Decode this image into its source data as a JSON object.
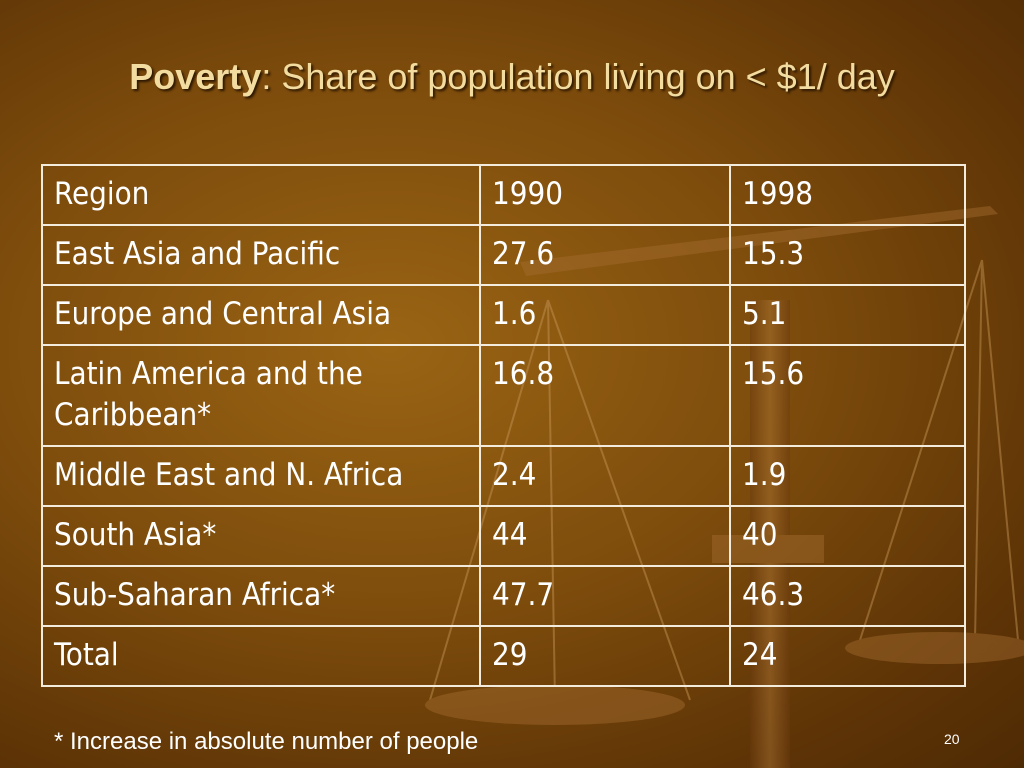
{
  "title": {
    "bold": "Poverty",
    "rest": ": Share of population living on < $1/ day"
  },
  "table": {
    "header": [
      "Region",
      "1990",
      "1998"
    ],
    "rows": [
      [
        "East Asia and Pacific",
        "27.6",
        "15.3"
      ],
      [
        "Europe and Central Asia",
        "1.6",
        "5.1"
      ],
      [
        "Latin America and the Caribbean*",
        "16.8",
        "15.6"
      ],
      [
        "Middle East and N. Africa",
        "2.4",
        "1.9"
      ],
      [
        "South Asia*",
        "44",
        "40"
      ],
      [
        "Sub-Saharan Africa*",
        "47.7",
        "46.3"
      ],
      [
        "Total",
        "29",
        "24"
      ]
    ]
  },
  "footnote": "* Increase in absolute number of people",
  "page_number": "20",
  "background_icon": "balance-scale-icon",
  "colors": {
    "background": "#7d4c0c",
    "title_text": "#f2dca0",
    "table_text": "#ffffff",
    "table_border": "#f3ecdc"
  }
}
